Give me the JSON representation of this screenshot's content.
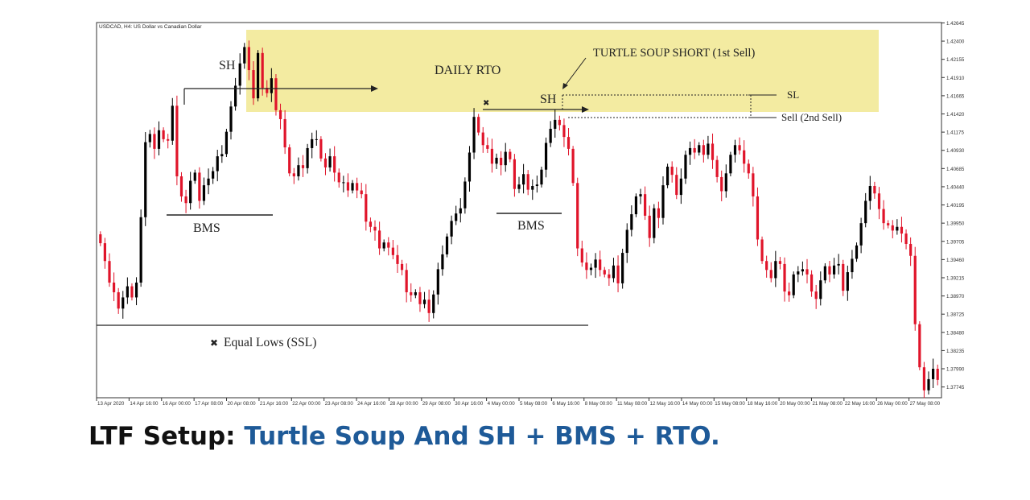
{
  "chart_data": {
    "type": "candlestick",
    "symbol_header": "USDCAD, H4:  US Dollar vs Canadian Dollar",
    "ylim": [
      1.376,
      1.4265
    ],
    "y_ticks": [
      "1.42645",
      "1.42400",
      "1.42155",
      "1.41910",
      "1.41665",
      "1.41420",
      "1.41175",
      "1.40930",
      "1.40685",
      "1.40440",
      "1.40195",
      "1.39950",
      "1.39705",
      "1.39460",
      "1.39215",
      "1.38970",
      "1.38725",
      "1.38480",
      "1.38235",
      "1.37990",
      "1.37745"
    ],
    "x_ticks": [
      "13 Apr 2020",
      "14 Apr 16:00",
      "16 Apr 00:00",
      "17 Apr 08:00",
      "20 Apr 08:00",
      "21 Apr 16:00",
      "22 Apr 00:00",
      "23 Apr 08:00",
      "24 Apr 16:00",
      "28 Apr 00:00",
      "29 Apr 08:00",
      "30 Apr 16:00",
      "4 May 00:00",
      "5 May 08:00",
      "6 May 16:00",
      "8 May 00:00",
      "11 May 08:00",
      "12 May 16:00",
      "14 May 00:00",
      "15 May 08:00",
      "18 May 16:00",
      "20 May 00:00",
      "21 May 08:00",
      "22 May 16:00",
      "26 May 00:00",
      "27 May 08:00"
    ],
    "close": [
      1.3968,
      1.3944,
      1.3915,
      1.3902,
      1.388,
      1.3895,
      1.391,
      1.3895,
      1.3915,
      1.4003,
      1.4104,
      1.4115,
      1.4095,
      1.412,
      1.4108,
      1.4106,
      1.4153,
      1.4058,
      1.4031,
      1.4022,
      1.4052,
      1.4063,
      1.4025,
      1.4046,
      1.4055,
      1.4065,
      1.4085,
      1.4088,
      1.4118,
      1.4152,
      1.418,
      1.421,
      1.4232,
      1.4201,
      1.4163,
      1.4224,
      1.4177,
      1.417,
      1.419,
      1.4147,
      1.4135,
      1.4097,
      1.4062,
      1.4058,
      1.4073,
      1.4069,
      1.4096,
      1.4108,
      1.4108,
      1.4082,
      1.407,
      1.4085,
      1.4063,
      1.405,
      1.405,
      1.4039,
      1.4049,
      1.4039,
      1.4034,
      1.3997,
      1.399,
      1.3985,
      1.3961,
      1.3969,
      1.3962,
      1.3952,
      1.394,
      1.3932,
      1.3902,
      1.3898,
      1.3902,
      1.3886,
      1.3892,
      1.3874,
      1.3899,
      1.3933,
      1.3953,
      1.3977,
      1.3998,
      1.4008,
      1.4015,
      1.4051,
      1.409,
      1.4138,
      1.4117,
      1.41,
      1.4095,
      1.4075,
      1.4083,
      1.4073,
      1.4091,
      1.4081,
      1.4041,
      1.4047,
      1.4061,
      1.404,
      1.4045,
      1.4047,
      1.4067,
      1.4103,
      1.4122,
      1.4134,
      1.4127,
      1.4111,
      1.4095,
      1.4049,
      1.3961,
      1.3942,
      1.3932,
      1.3935,
      1.3946,
      1.3932,
      1.3926,
      1.3921,
      1.3938,
      1.3914,
      1.3955,
      1.3986,
      1.4007,
      1.4031,
      1.4034,
      1.4005,
      1.3975,
      1.4015,
      1.4002,
      1.4046,
      1.4071,
      1.406,
      1.4033,
      1.4055,
      1.4087,
      1.4096,
      1.409,
      1.41,
      1.4087,
      1.4102,
      1.408,
      1.4057,
      1.4038,
      1.4062,
      1.4087,
      1.41,
      1.4093,
      1.4075,
      1.4062,
      1.4031,
      1.3973,
      1.3944,
      1.3932,
      1.3921,
      1.3944,
      1.394,
      1.3903,
      1.3898,
      1.3926,
      1.393,
      1.3933,
      1.3926,
      1.3903,
      1.3893,
      1.3918,
      1.3937,
      1.3926,
      1.3938,
      1.394,
      1.3904,
      1.3929,
      1.3947,
      1.3965,
      1.3995,
      1.4025,
      1.4045,
      1.4035,
      1.4014,
      1.3995,
      1.3992,
      1.3985,
      1.399,
      1.3981,
      1.3967,
      1.3951,
      1.3859,
      1.3801,
      1.377,
      1.3785,
      1.3799,
      1.3784
    ],
    "title": "",
    "xlabel": "",
    "ylabel": "",
    "grid": false
  },
  "annotations": {
    "sh_left": "SH",
    "daily_rto": "DAILY RTO",
    "turtle_soup": "TURTLE SOUP SHORT (1st Sell)",
    "sh_right": "SH",
    "sl": "SL",
    "sell": "Sell (2nd Sell)",
    "bms_left": "BMS",
    "bms_right": "BMS",
    "equal_lows": "Equal Lows (SSL)",
    "x_marker": "✖"
  },
  "caption": {
    "prefix": "LTF Setup:",
    "accent": "Turtle Soup And SH + BMS + RTO."
  },
  "colors": {
    "bull": "#000000",
    "bear": "#e0142a",
    "zone": "#f0e68c",
    "accent": "#1e5a98",
    "text": "#111111"
  }
}
